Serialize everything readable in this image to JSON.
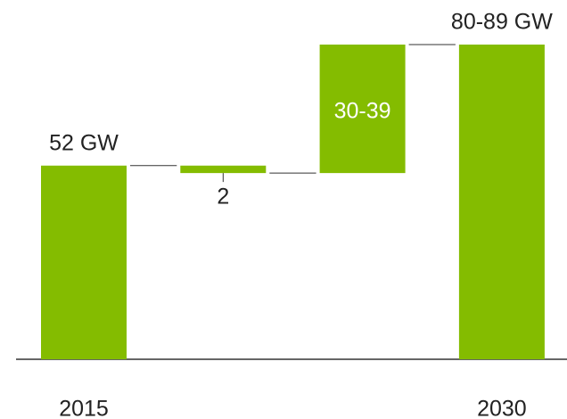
{
  "chart_data": {
    "type": "waterfall",
    "categories": [
      "2015",
      null,
      null,
      "2030"
    ],
    "measures": [
      "absolute",
      "relative",
      "relative",
      "total"
    ],
    "values": [
      52,
      -2,
      34.5,
      84.5
    ],
    "value_labels": [
      "52 GW",
      "2",
      "30-39",
      "80-89 GW"
    ],
    "color": "#84bc00"
  }
}
